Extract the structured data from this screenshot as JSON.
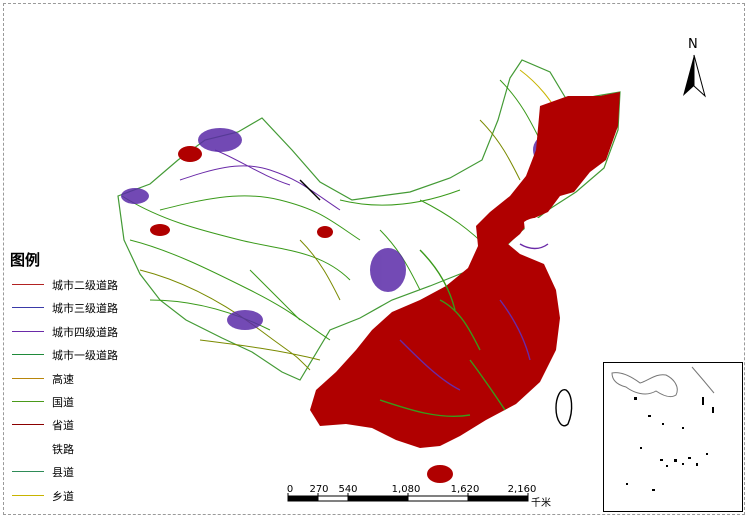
{
  "legend": {
    "title": "图例",
    "items": [
      {
        "label": "城市二级道路",
        "color": "#b22222",
        "style": "line"
      },
      {
        "label": "城市三级道路",
        "color": "#3a3aa8",
        "style": "line"
      },
      {
        "label": "城市四级道路",
        "color": "#6a2aa8",
        "style": "line"
      },
      {
        "label": "城市一级道路",
        "color": "#1f8a3a",
        "style": "line"
      },
      {
        "label": "高速",
        "color": "#b8860b",
        "style": "line"
      },
      {
        "label": "国道",
        "color": "#4a9a1a",
        "style": "line"
      },
      {
        "label": "省道",
        "color": "#8b0000",
        "style": "line"
      },
      {
        "label": "铁路",
        "color": "#000000",
        "style": "rail"
      },
      {
        "label": "县道",
        "color": "#2e8b57",
        "style": "line"
      },
      {
        "label": "乡道",
        "color": "#c8b400",
        "style": "line"
      }
    ]
  },
  "north_arrow": {
    "label": "N"
  },
  "scale_bar": {
    "ticks": [
      "0",
      "270",
      "540",
      "1,080",
      "1,620",
      "2,160"
    ],
    "tick_values": [
      0,
      270,
      540,
      1080,
      1620,
      2160
    ],
    "unit": "千米"
  },
  "colors": {
    "province_road": "#b00000",
    "national_road": "#3a9a1a",
    "city_road_4": "#6a2aa8",
    "highway": "#b8a000",
    "railway": "#000000"
  }
}
